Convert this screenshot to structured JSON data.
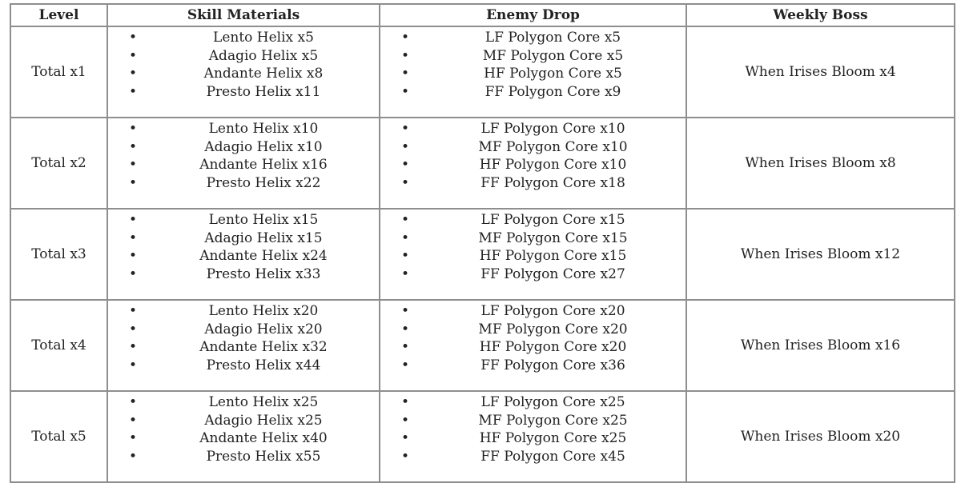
{
  "headers": [
    "Level",
    "Skill Materials",
    "Enemy Drop",
    "Weekly Boss"
  ],
  "rows": [
    {
      "level": "Total x1",
      "skill": [
        "Lento Helix x5",
        "Adagio Helix x5",
        "Andante Helix x8",
        "Presto Helix x11"
      ],
      "enemy": [
        "LF Polygon Core x5",
        "MF Polygon Core x5",
        "HF Polygon Core x5",
        "FF Polygon Core x9"
      ],
      "boss": "When Irises Bloom x4"
    },
    {
      "level": "Total x2",
      "skill": [
        "Lento Helix x10",
        "Adagio Helix x10",
        "Andante Helix x16",
        "Presto Helix x22"
      ],
      "enemy": [
        "LF Polygon Core x10",
        "MF Polygon Core x10",
        "HF Polygon Core x10",
        "FF Polygon Core x18"
      ],
      "boss": "When Irises Bloom x8"
    },
    {
      "level": "Total x3",
      "skill": [
        "Lento Helix x15",
        "Adagio Helix x15",
        "Andante Helix x24",
        "Presto Helix x33"
      ],
      "enemy": [
        "LF Polygon Core x15",
        "MF Polygon Core x15",
        "HF Polygon Core x15",
        "FF Polygon Core x27"
      ],
      "boss": "When Irises Bloom x12"
    },
    {
      "level": "Total x4",
      "skill": [
        "Lento Helix x20",
        "Adagio Helix x20",
        "Andante Helix x32",
        "Presto Helix x44"
      ],
      "enemy": [
        "LF Polygon Core x20",
        "MF Polygon Core x20",
        "HF Polygon Core x20",
        "FF Polygon Core x36"
      ],
      "boss": "When Irises Bloom x16"
    },
    {
      "level": "Total x5",
      "skill": [
        "Lento Helix x25",
        "Adagio Helix x25",
        "Andante Helix x40",
        "Presto Helix x55"
      ],
      "enemy": [
        "LF Polygon Core x25",
        "MF Polygon Core x25",
        "HF Polygon Core x25",
        "FF Polygon Core x45"
      ],
      "boss": "When Irises Bloom x20"
    }
  ]
}
